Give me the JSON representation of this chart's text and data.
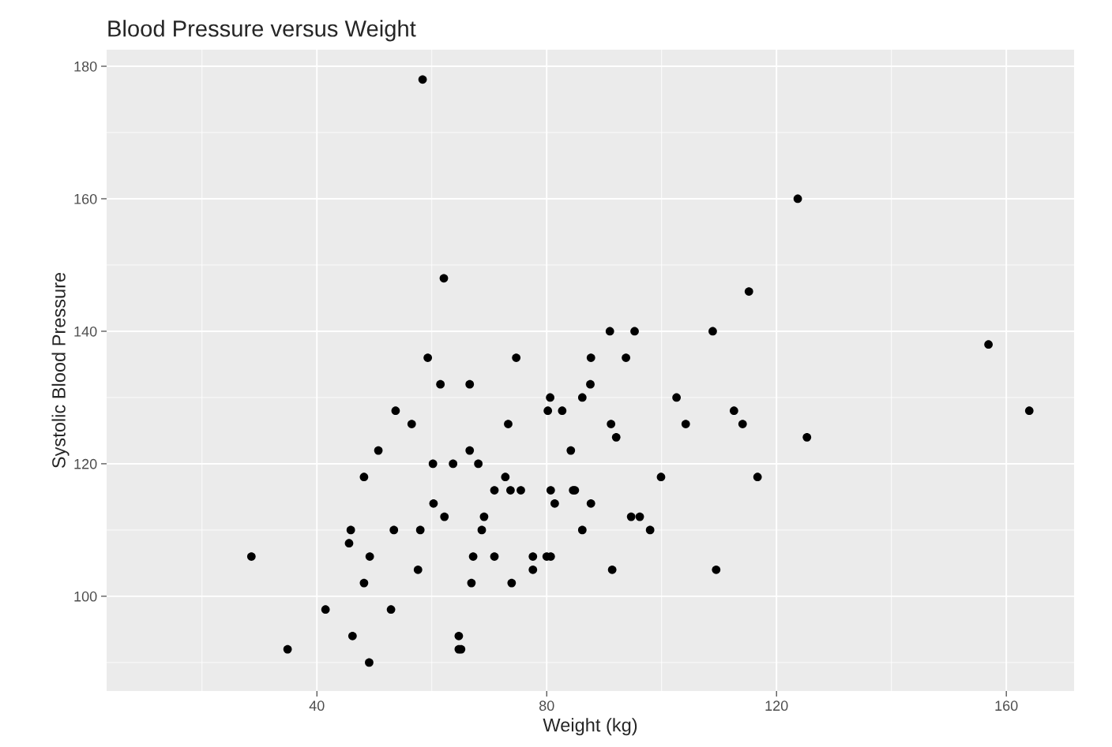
{
  "chart_data": {
    "type": "scatter",
    "title": "Blood Pressure versus Weight",
    "xlabel": "Weight (kg)",
    "ylabel": "Systolic Blood Pressure",
    "xlim": [
      3.4,
      171.8
    ],
    "ylim": [
      85.7,
      182.5
    ],
    "xticks": [
      40,
      80,
      120,
      160
    ],
    "yticks": [
      100,
      120,
      140,
      160,
      180
    ],
    "grid": true,
    "marker": "circle",
    "series": [
      {
        "color": "#000000",
        "x": [
          28.6,
          34.9,
          41.5,
          45.6,
          45.9,
          46.2,
          48.2,
          48.2,
          49.2,
          49.1,
          50.7,
          52.9,
          53.4,
          53.7,
          56.5,
          57.6,
          58.0,
          58.4,
          59.3,
          60.2,
          60.3,
          61.5,
          62.1,
          62.2,
          63.7,
          64.7,
          64.7,
          65.1,
          66.6,
          66.6,
          66.9,
          67.2,
          68.1,
          68.7,
          69.1,
          70.9,
          70.9,
          72.8,
          73.3,
          73.7,
          73.9,
          74.7,
          75.5,
          77.6,
          77.6,
          80.0,
          80.2,
          80.6,
          80.7,
          80.7,
          81.4,
          82.7,
          84.2,
          84.6,
          84.9,
          86.2,
          86.2,
          87.7,
          87.6,
          87.7,
          91.0,
          91.2,
          91.4,
          92.1,
          93.8,
          94.7,
          95.3,
          96.2,
          98.0,
          99.9,
          102.6,
          104.2,
          108.9,
          109.5,
          112.6,
          114.1,
          115.2,
          116.7,
          123.7,
          125.3,
          156.9,
          164.0
        ],
        "values": [
          106,
          92,
          98,
          108,
          110,
          94,
          102,
          118,
          106,
          90,
          122,
          98,
          110,
          128,
          126,
          104,
          110,
          178,
          136,
          120,
          114,
          132,
          148,
          112,
          120,
          94,
          92,
          92,
          132,
          122,
          102,
          106,
          120,
          110,
          112,
          116,
          106,
          118,
          126,
          116,
          102,
          136,
          116,
          106,
          104,
          106,
          128,
          130,
          116,
          106,
          114,
          128,
          122,
          116,
          116,
          130,
          110,
          136,
          132,
          114,
          140,
          126,
          104,
          124,
          136,
          112,
          140,
          112,
          110,
          118,
          130,
          126,
          140,
          104,
          128,
          126,
          146,
          118,
          160,
          124,
          138,
          128
        ]
      }
    ]
  }
}
